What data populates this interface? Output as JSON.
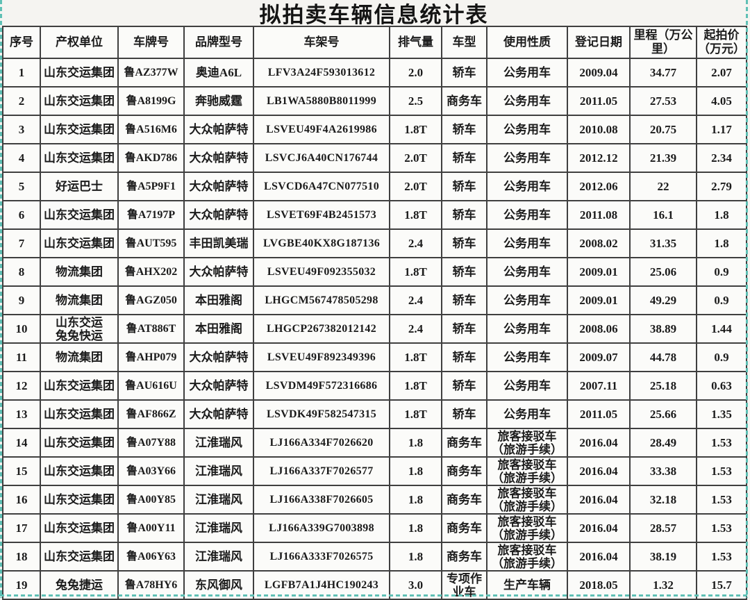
{
  "title": "拟拍卖车辆信息统计表",
  "colors": {
    "page_break_teal": "#5fc0b5",
    "grid_border": "#3f3f3f",
    "text": "#1b1b1b",
    "background": "#f5f4f1"
  },
  "table": {
    "headers": [
      "序号",
      "产权单位",
      "车牌号",
      "品牌型号",
      "车架号",
      "排气量",
      "车型",
      "使用性质",
      "登记日期",
      "里程（万公里）",
      "起拍价\n（万元）"
    ],
    "rows": [
      [
        "1",
        "山东交运集团",
        "鲁AZ377W",
        "奥迪A6L",
        "LFV3A24F593013612",
        "2.0",
        "轿车",
        "公务用车",
        "2009.04",
        "34.77",
        "2.07"
      ],
      [
        "2",
        "山东交运集团",
        "鲁A8199G",
        "奔驰威霆",
        "LB1WA5880B8011999",
        "2.5",
        "商务车",
        "公务用车",
        "2011.05",
        "27.53",
        "4.05"
      ],
      [
        "3",
        "山东交运集团",
        "鲁A516M6",
        "大众帕萨特",
        "LSVEU49F4A2619986",
        "1.8T",
        "轿车",
        "公务用车",
        "2010.08",
        "20.75",
        "1.17"
      ],
      [
        "4",
        "山东交运集团",
        "鲁AKD786",
        "大众帕萨特",
        "LSVCJ6A40CN176744",
        "2.0T",
        "轿车",
        "公务用车",
        "2012.12",
        "21.39",
        "2.34"
      ],
      [
        "5",
        "好运巴士",
        "鲁A5P9F1",
        "大众帕萨特",
        "LSVCD6A47CN077510",
        "2.0T",
        "轿车",
        "公务用车",
        "2012.06",
        "22",
        "2.79"
      ],
      [
        "6",
        "山东交运集团",
        "鲁A7197P",
        "大众帕萨特",
        "LSVET69F4B2451573",
        "1.8T",
        "轿车",
        "公务用车",
        "2011.08",
        "16.1",
        "1.8"
      ],
      [
        "7",
        "山东交运集团",
        "鲁AUT595",
        "丰田凯美瑞",
        "LVGBE40KX8G187136",
        "2.4",
        "轿车",
        "公务用车",
        "2008.02",
        "31.35",
        "1.8"
      ],
      [
        "8",
        "物流集团",
        "鲁AHX202",
        "大众帕萨特",
        "LSVEU49F092355032",
        "1.8T",
        "轿车",
        "公务用车",
        "2009.01",
        "25.06",
        "0.9"
      ],
      [
        "9",
        "物流集团",
        "鲁AGZ050",
        "本田雅阁",
        "LHGCM567478505298",
        "2.4",
        "轿车",
        "公务用车",
        "2009.01",
        "49.29",
        "0.9"
      ],
      [
        "10",
        "山东交运\n兔兔快运",
        "鲁AT886T",
        "本田雅阁",
        "LHGCP267382012142",
        "2.4",
        "轿车",
        "公务用车",
        "2008.06",
        "38.89",
        "1.44"
      ],
      [
        "11",
        "物流集团",
        "鲁AHP079",
        "大众帕萨特",
        "LSVEU49F892349396",
        "1.8T",
        "轿车",
        "公务用车",
        "2009.07",
        "44.78",
        "0.9"
      ],
      [
        "12",
        "山东交运集团",
        "鲁AU616U",
        "大众帕萨特",
        "LSVDM49F572316686",
        "1.8T",
        "轿车",
        "公务用车",
        "2007.11",
        "25.18",
        "0.63"
      ],
      [
        "13",
        "山东交运集团",
        "鲁AF866Z",
        "大众帕萨特",
        "LSVDK49F582547315",
        "1.8T",
        "轿车",
        "公务用车",
        "2011.05",
        "25.66",
        "1.35"
      ],
      [
        "14",
        "山东交运集团",
        "鲁A07Y88",
        "江淮瑞风",
        "LJ166A334F7026620",
        "1.8",
        "商务车",
        "旅客接驳车\n（旅游手续）",
        "2016.04",
        "28.49",
        "1.53"
      ],
      [
        "15",
        "山东交运集团",
        "鲁A03Y66",
        "江淮瑞风",
        "LJ166A337F7026577",
        "1.8",
        "商务车",
        "旅客接驳车\n（旅游手续）",
        "2016.04",
        "33.38",
        "1.53"
      ],
      [
        "16",
        "山东交运集团",
        "鲁A00Y85",
        "江淮瑞风",
        "LJ166A338F7026605",
        "1.8",
        "商务车",
        "旅客接驳车\n（旅游手续）",
        "2016.04",
        "32.18",
        "1.53"
      ],
      [
        "17",
        "山东交运集团",
        "鲁A00Y11",
        "江淮瑞风",
        "LJ166A339G7003898",
        "1.8",
        "商务车",
        "旅客接驳车\n（旅游手续）",
        "2016.04",
        "28.57",
        "1.53"
      ],
      [
        "18",
        "山东交运集团",
        "鲁A06Y63",
        "江淮瑞风",
        "LJ166A333F7026575",
        "1.8",
        "商务车",
        "旅客接驳车\n（旅游手续）",
        "2016.04",
        "38.19",
        "1.53"
      ],
      [
        "19",
        "兔兔捷运",
        "鲁A78HY6",
        "东风御风",
        "LGFB7A1J4HC190243",
        "3.0",
        "专项作业车",
        "生产车辆",
        "2018.05",
        "1.32",
        "15.7"
      ]
    ]
  }
}
